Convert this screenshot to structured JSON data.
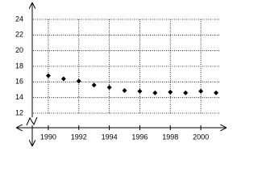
{
  "chart_data": {
    "type": "scatter",
    "x": [
      1990,
      1991,
      1992,
      1993,
      1994,
      1995,
      1996,
      1997,
      1998,
      1999,
      2000,
      2001
    ],
    "values": [
      16.8,
      16.4,
      16.1,
      15.6,
      15.3,
      14.9,
      14.8,
      14.6,
      14.7,
      14.6,
      14.8,
      14.6
    ],
    "color": "#000000",
    "xlim": [
      1989,
      2001
    ],
    "xticks": [
      1990,
      1992,
      1994,
      1996,
      1998,
      2000
    ],
    "ylim": [
      12,
      24
    ],
    "yticks": [
      12,
      14,
      16,
      18,
      20,
      22,
      24
    ],
    "grid": true
  }
}
